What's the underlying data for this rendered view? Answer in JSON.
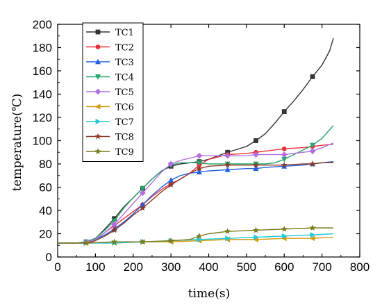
{
  "chart_data": {
    "type": "line",
    "xlabel": "time(s)",
    "ylabel": "temperature(℃)",
    "xlim": [
      0,
      800
    ],
    "ylim": [
      0,
      200
    ],
    "xticks": [
      0,
      100,
      200,
      300,
      400,
      500,
      600,
      700,
      800
    ],
    "yticks": [
      0,
      20,
      40,
      60,
      80,
      100,
      120,
      140,
      160,
      180,
      200
    ],
    "grid": false,
    "legend_position": "top-left",
    "series": [
      {
        "name": "TC1",
        "color": "#333333",
        "marker": "square",
        "x": [
          0,
          50,
          75,
          100,
          125,
          150,
          175,
          200,
          225,
          250,
          275,
          300,
          325,
          350,
          375,
          400,
          450,
          500,
          525,
          550,
          575,
          600,
          625,
          650,
          675,
          700,
          720,
          730
        ],
        "y": [
          12,
          12,
          13,
          16,
          24,
          33,
          43,
          51,
          59,
          67,
          74,
          78,
          80,
          81,
          82,
          84,
          90,
          95,
          100,
          106,
          115,
          125,
          134,
          144,
          155,
          165,
          177,
          188
        ],
        "markers_x": [
          75,
          150,
          225,
          300,
          375,
          450,
          525,
          600,
          675
        ]
      },
      {
        "name": "TC2",
        "color": "#e8303a",
        "marker": "circle",
        "x": [
          0,
          50,
          75,
          100,
          125,
          150,
          175,
          200,
          225,
          250,
          275,
          300,
          325,
          350,
          375,
          400,
          450,
          500,
          525,
          550,
          600,
          650,
          675,
          700,
          730
        ],
        "y": [
          12,
          12,
          13,
          15,
          21,
          27,
          33,
          39,
          45,
          52,
          58,
          63,
          67,
          72,
          79,
          84,
          88,
          89,
          90,
          91,
          93,
          94,
          95,
          96,
          97
        ],
        "markers_x": [
          75,
          150,
          225,
          300,
          375,
          450,
          525,
          600,
          675
        ]
      },
      {
        "name": "TC3",
        "color": "#2060e0",
        "marker": "triangle-up",
        "x": [
          0,
          50,
          75,
          100,
          125,
          150,
          175,
          200,
          225,
          250,
          275,
          300,
          325,
          350,
          375,
          400,
          450,
          500,
          525,
          550,
          600,
          650,
          675,
          700,
          730
        ],
        "y": [
          12,
          12,
          13,
          15,
          19,
          24,
          30,
          37,
          45,
          53,
          60,
          66,
          70,
          72,
          73,
          74,
          75,
          76,
          76,
          77,
          78,
          79,
          80,
          81,
          82
        ],
        "markers_x": [
          75,
          150,
          225,
          300,
          375,
          450,
          525,
          600,
          675
        ]
      },
      {
        "name": "TC4",
        "color": "#2aa56b",
        "marker": "triangle-down",
        "x": [
          0,
          50,
          75,
          100,
          125,
          150,
          175,
          200,
          225,
          250,
          275,
          300,
          325,
          350,
          375,
          400,
          450,
          500,
          525,
          550,
          575,
          600,
          625,
          650,
          675,
          700,
          730
        ],
        "y": [
          12,
          12,
          13,
          16,
          23,
          31,
          42,
          51,
          59,
          67,
          74,
          79,
          81,
          81,
          81,
          80,
          80,
          80,
          80,
          80,
          81,
          84,
          88,
          92,
          96,
          102,
          113
        ],
        "markers_x": [
          75,
          150,
          225,
          300,
          375,
          450,
          525,
          600,
          675
        ]
      },
      {
        "name": "TC5",
        "color": "#b070e0",
        "marker": "diamond",
        "x": [
          0,
          50,
          75,
          100,
          125,
          150,
          175,
          200,
          225,
          250,
          275,
          300,
          325,
          350,
          375,
          400,
          450,
          500,
          525,
          550,
          600,
          650,
          675,
          700,
          730
        ],
        "y": [
          12,
          12,
          13,
          15,
          21,
          28,
          37,
          46,
          55,
          64,
          73,
          80,
          83,
          85,
          87,
          87,
          87,
          87,
          88,
          88,
          88,
          90,
          91,
          94,
          98
        ],
        "markers_x": [
          75,
          150,
          225,
          300,
          375,
          450,
          525,
          600,
          675
        ]
      },
      {
        "name": "TC6",
        "color": "#d49a10",
        "marker": "triangle-left",
        "x": [
          0,
          75,
          150,
          225,
          300,
          375,
          450,
          525,
          600,
          675,
          730
        ],
        "y": [
          12,
          12,
          12,
          13,
          13,
          14,
          15,
          15,
          16,
          16,
          17
        ],
        "markers_x": [
          75,
          150,
          225,
          300,
          375,
          450,
          525,
          600,
          675
        ]
      },
      {
        "name": "TC7",
        "color": "#20c8d8",
        "marker": "triangle-right",
        "x": [
          0,
          75,
          150,
          225,
          300,
          375,
          450,
          525,
          600,
          675,
          730
        ],
        "y": [
          12,
          12,
          12,
          13,
          14,
          15,
          16,
          17,
          18,
          19,
          20
        ],
        "markers_x": [
          75,
          150,
          225,
          300,
          375,
          450,
          525,
          600,
          675
        ]
      },
      {
        "name": "TC8",
        "color": "#8b3a2a",
        "marker": "star",
        "x": [
          0,
          50,
          75,
          100,
          125,
          150,
          175,
          200,
          225,
          250,
          275,
          300,
          325,
          350,
          375,
          400,
          450,
          500,
          525,
          550,
          600,
          650,
          675,
          700,
          730
        ],
        "y": [
          12,
          12,
          12,
          14,
          18,
          23,
          29,
          36,
          42,
          49,
          56,
          62,
          67,
          72,
          76,
          78,
          79,
          79,
          79,
          79,
          79,
          80,
          80,
          81,
          81
        ],
        "markers_x": [
          75,
          150,
          225,
          300,
          375,
          450,
          525,
          600,
          675
        ]
      },
      {
        "name": "TC9",
        "color": "#7a7a18",
        "marker": "star",
        "x": [
          0,
          75,
          150,
          225,
          300,
          350,
          375,
          400,
          450,
          525,
          600,
          675,
          730
        ],
        "y": [
          12,
          12,
          13,
          13,
          14,
          15,
          18,
          20,
          22,
          23,
          24,
          25,
          25
        ],
        "markers_x": [
          75,
          150,
          225,
          300,
          375,
          450,
          525,
          600,
          675
        ]
      }
    ]
  }
}
